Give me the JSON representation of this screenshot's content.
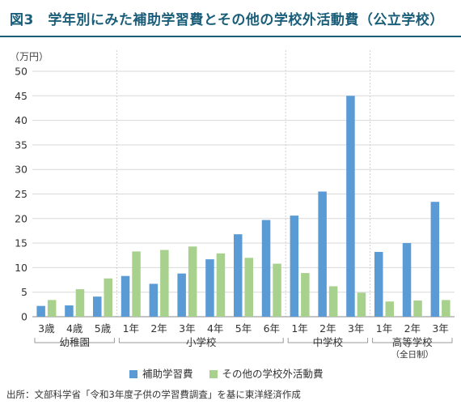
{
  "title": "図3　学年別にみた補助学習費とその他の学校外活動費（公立学校）",
  "source": "出所：文部科学省「令和3年度子供の学習費調査」を基に東洋経済作成",
  "colors": {
    "title": "#1a5e7a",
    "series1": "#5b9bd5",
    "series2": "#a9d18e",
    "grid": "#d9d9d9"
  },
  "chart_data": {
    "type": "bar",
    "unit_label": "（万円）",
    "ylim": [
      0,
      50
    ],
    "yticks": [
      0,
      5,
      10,
      15,
      20,
      25,
      30,
      35,
      40,
      45,
      50
    ],
    "grid": true,
    "legend_position": "bottom",
    "categories": [
      "3歳",
      "4歳",
      "5歳",
      "1年",
      "2年",
      "3年",
      "4年",
      "5年",
      "6年",
      "1年",
      "2年",
      "3年",
      "1年",
      "2年",
      "3年"
    ],
    "groups": [
      {
        "label": "幼稚園",
        "start": 0,
        "end": 2
      },
      {
        "label": "小学校",
        "start": 3,
        "end": 8
      },
      {
        "label": "中学校",
        "start": 9,
        "end": 11
      },
      {
        "label": "高等学校",
        "sublabel": "（全日制）",
        "start": 12,
        "end": 14
      }
    ],
    "series": [
      {
        "name": "補助学習費",
        "values": [
          2.2,
          2.3,
          4.1,
          8.3,
          6.7,
          8.8,
          11.7,
          16.8,
          19.7,
          20.6,
          25.5,
          45.0,
          13.2,
          15.0,
          23.4
        ]
      },
      {
        "name": "その他の学校外活動費",
        "values": [
          3.4,
          5.6,
          7.8,
          13.3,
          13.6,
          14.3,
          12.9,
          12.0,
          10.8,
          8.9,
          6.2,
          4.9,
          3.1,
          3.3,
          3.4
        ]
      }
    ]
  }
}
